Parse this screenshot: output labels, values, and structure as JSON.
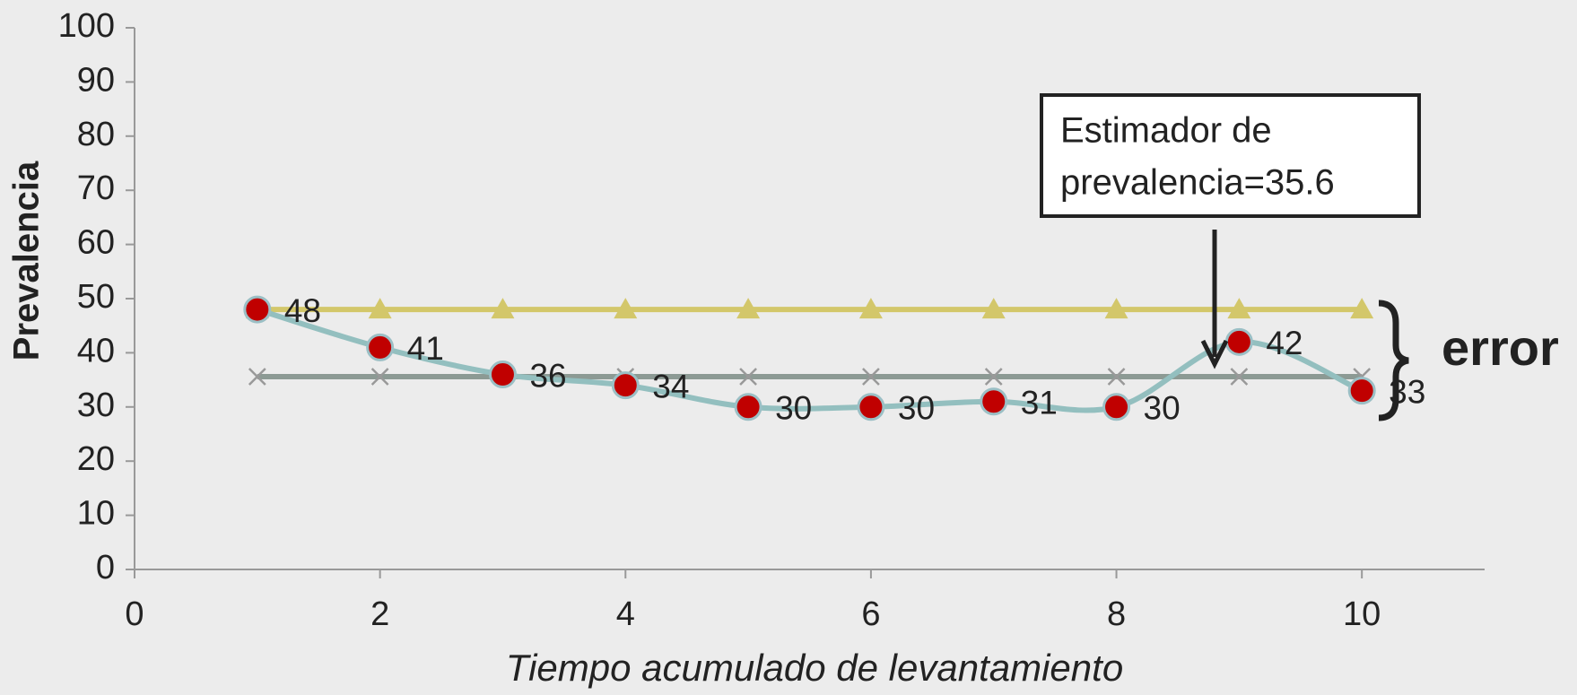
{
  "chart_data": {
    "type": "line",
    "x_label": "Tiempo acumulado de levantamiento",
    "y_label": "Prevalencia",
    "x": [
      1,
      2,
      3,
      4,
      5,
      6,
      7,
      8,
      9,
      10
    ],
    "series": [
      {
        "color": "#d3c76a",
        "marker": "triangle",
        "smooth": false,
        "values": [
          48,
          48,
          48,
          48,
          48,
          48,
          48,
          48,
          48,
          48
        ]
      },
      {
        "color": "#8c9a94",
        "marker": "x",
        "smooth": false,
        "values": [
          35.6,
          35.6,
          35.6,
          35.6,
          35.6,
          35.6,
          35.6,
          35.6,
          35.6,
          35.6
        ]
      },
      {
        "color": "#93bfbf",
        "marker": "circle",
        "marker_color": "#c00000",
        "smooth": true,
        "labels": true,
        "values": [
          48,
          41,
          36,
          34,
          30,
          30,
          31,
          30,
          42,
          33
        ]
      }
    ],
    "xlim": [
      0,
      11
    ],
    "xticks": [
      0,
      2,
      4,
      6,
      8,
      10
    ],
    "ylim": [
      0,
      100
    ],
    "yticks": [
      0,
      10,
      20,
      30,
      40,
      50,
      60,
      70,
      80,
      90,
      100
    ],
    "annotation": [
      "Estimador de",
      "prevalencia=35.6"
    ],
    "error_label": "error"
  }
}
